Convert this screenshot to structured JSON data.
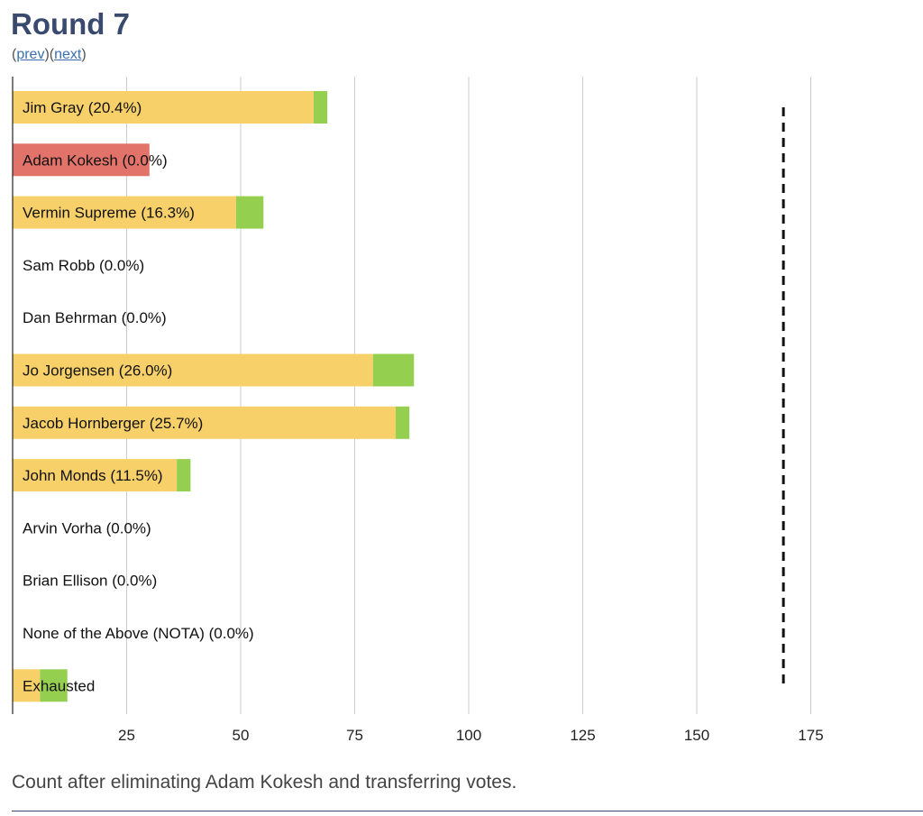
{
  "header": {
    "title": "Round 7",
    "prev_label": "prev",
    "next_label": "next",
    "paren_open": "(",
    "paren_mid": ")(",
    "paren_close": ")"
  },
  "caption": "Count after eliminating Adam Kokesh and transferring votes.",
  "colors": {
    "continuing": "#f7d06a",
    "transferred": "#95cf4f",
    "eliminated": "#e2736a",
    "grid": "#cccccc",
    "threshold": "#111111"
  },
  "chart_data": {
    "type": "bar",
    "orientation": "horizontal",
    "stacked": true,
    "xlim": [
      0,
      200
    ],
    "xticks": [
      25,
      50,
      75,
      100,
      125,
      150,
      175
    ],
    "grid": true,
    "threshold": 169,
    "series": [
      "prior",
      "transferred"
    ],
    "categories": [
      "Jim Gray (20.4%)",
      "Adam Kokesh (0.0%)",
      "Vermin Supreme (16.3%)",
      "Sam Robb (0.0%)",
      "Dan Behrman (0.0%)",
      "Jo Jorgensen (26.0%)",
      "Jacob Hornberger (25.7%)",
      "John Monds (11.5%)",
      "Arvin Vorha (0.0%)",
      "Brian Ellison (0.0%)",
      "None of the Above (NOTA) (0.0%)",
      "Exhausted"
    ],
    "rows": [
      {
        "label": "Jim Gray (20.4%)",
        "prior": 66,
        "transferred": 3,
        "status": "continuing"
      },
      {
        "label": "Adam Kokesh (0.0%)",
        "prior": 30,
        "transferred": 0,
        "status": "eliminated"
      },
      {
        "label": "Vermin Supreme (16.3%)",
        "prior": 49,
        "transferred": 6,
        "status": "continuing"
      },
      {
        "label": "Sam Robb (0.0%)",
        "prior": 0,
        "transferred": 0,
        "status": "continuing"
      },
      {
        "label": "Dan Behrman (0.0%)",
        "prior": 0,
        "transferred": 0,
        "status": "continuing"
      },
      {
        "label": "Jo Jorgensen (26.0%)",
        "prior": 79,
        "transferred": 9,
        "status": "continuing"
      },
      {
        "label": "Jacob Hornberger (25.7%)",
        "prior": 84,
        "transferred": 3,
        "status": "continuing"
      },
      {
        "label": "John Monds (11.5%)",
        "prior": 36,
        "transferred": 3,
        "status": "continuing"
      },
      {
        "label": "Arvin Vorha (0.0%)",
        "prior": 0,
        "transferred": 0,
        "status": "continuing"
      },
      {
        "label": "Brian Ellison (0.0%)",
        "prior": 0,
        "transferred": 0,
        "status": "continuing"
      },
      {
        "label": "None of the Above (NOTA) (0.0%)",
        "prior": 0,
        "transferred": 0,
        "status": "continuing"
      },
      {
        "label": "Exhausted",
        "prior": 6,
        "transferred": 6,
        "status": "continuing"
      }
    ]
  }
}
